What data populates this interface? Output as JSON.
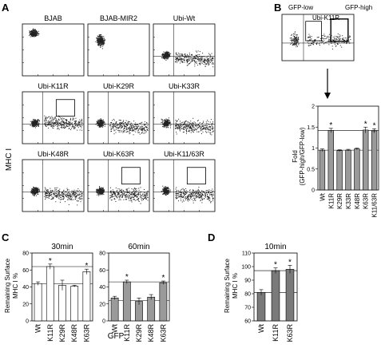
{
  "panels": {
    "A": {
      "letter": "A",
      "y_axis_label": "MHC I",
      "x_axis_label": "GFP",
      "plots": [
        "BJAB",
        "BJAB-MIR2",
        "Ubi-Wt",
        "Ubi-K11R",
        "Ubi-K29R",
        "Ubi-K33R",
        "Ubi-K48R",
        "Ubi-K63R",
        "Ubi-K11/63R"
      ]
    },
    "B": {
      "letter": "B",
      "inset_labels": [
        "GFP-low",
        "Ubi-K11R",
        "GFP-high"
      ],
      "ylabel_line1": "Fold",
      "ylabel_line2": "(GFP-high/GFP-low)"
    },
    "C": {
      "letter": "C",
      "ylabel_line1": "Remaining Surface",
      "ylabel_line2": "MHC I %"
    },
    "D": {
      "letter": "D",
      "ylabel_line1": "Remaining Surface",
      "ylabel_line2": "MHC I %"
    }
  },
  "significance_marker": "*",
  "chart_data": [
    {
      "id": "B",
      "type": "bar",
      "categories": [
        "Wt",
        "K11R",
        "K29R",
        "K33R",
        "K48R",
        "K63R",
        "K11/63R"
      ],
      "values": [
        0.95,
        1.42,
        0.94,
        0.95,
        0.98,
        1.43,
        1.41
      ],
      "errors": [
        0.03,
        0.05,
        0.02,
        0.02,
        0.02,
        0.07,
        0.05
      ],
      "significant": [
        false,
        true,
        false,
        false,
        false,
        true,
        true
      ],
      "ylim": [
        0,
        2
      ],
      "yticks": [
        0,
        0.5,
        1,
        1.5,
        2
      ],
      "ytick_labels": [
        "0",
        "0.5",
        "1",
        "1.5",
        "2"
      ],
      "reference_lines": [
        0.95,
        1.42
      ],
      "bar_color": "#9a9a9a"
    },
    {
      "id": "C-30",
      "type": "bar",
      "title": "30min",
      "categories": [
        "Wt",
        "K11R",
        "K29R",
        "K48R",
        "K63R"
      ],
      "values": [
        44,
        64,
        42,
        41,
        58
      ],
      "errors": [
        2,
        3,
        6,
        1,
        3
      ],
      "significant": [
        false,
        true,
        false,
        false,
        true
      ],
      "ylim": [
        0,
        80
      ],
      "yticks": [
        0,
        20,
        40,
        60,
        80
      ],
      "ytick_labels": [
        "0",
        "20",
        "40",
        "60",
        "80"
      ],
      "reference_lines": [
        44,
        64
      ],
      "bar_color": "#ffffff"
    },
    {
      "id": "C-60",
      "type": "bar",
      "title": "60min",
      "categories": [
        "Wt",
        "K11R",
        "K29R",
        "K48R",
        "K63R"
      ],
      "values": [
        27,
        46,
        23,
        28,
        45
      ],
      "errors": [
        2,
        2,
        4,
        3,
        2
      ],
      "significant": [
        false,
        true,
        false,
        false,
        true
      ],
      "ylim": [
        0,
        80
      ],
      "yticks": [
        0,
        20,
        40,
        60,
        80
      ],
      "ytick_labels": [
        "0",
        "20",
        "40",
        "60",
        "80"
      ],
      "reference_lines": [
        24,
        46
      ],
      "bar_color": "#9a9a9a"
    },
    {
      "id": "D",
      "type": "bar",
      "title": "10min",
      "categories": [
        "Wt",
        "K11R",
        "K63R"
      ],
      "values": [
        81,
        97,
        98
      ],
      "errors": [
        2,
        2,
        3
      ],
      "significant": [
        false,
        true,
        true
      ],
      "ylim": [
        60,
        110
      ],
      "yticks": [
        60,
        70,
        80,
        90,
        100,
        110
      ],
      "ytick_labels": [
        "60",
        "70",
        "80",
        "90",
        "100",
        "110"
      ],
      "reference_lines": [
        81,
        97
      ],
      "bar_color": "#7a7a7a"
    }
  ]
}
